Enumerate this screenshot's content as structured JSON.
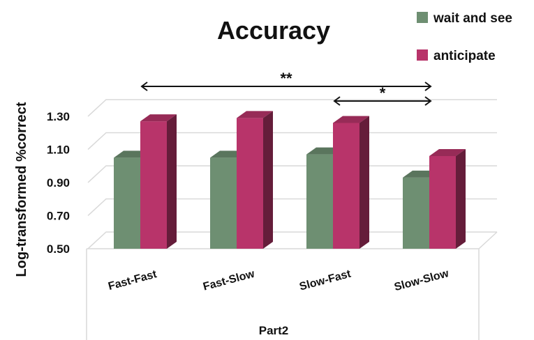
{
  "chart_data": {
    "type": "bar",
    "title": "Accuracy",
    "ylabel": "Log-transformed %correct",
    "xlabel": "Part2",
    "ylim": [
      0.5,
      1.3
    ],
    "yticks": [
      "0.50",
      "0.70",
      "0.90",
      "1.10",
      "1.30"
    ],
    "categories": [
      "Fast-Fast",
      "Fast-Slow",
      "Slow-Fast",
      "Slow-Slow"
    ],
    "series": [
      {
        "name": "wait and see",
        "color": "#6e8f72",
        "values": [
          1.05,
          1.05,
          1.07,
          0.93
        ]
      },
      {
        "name": "anticipate",
        "color": "#b8346a",
        "values": [
          1.27,
          1.29,
          1.26,
          1.06
        ]
      }
    ],
    "legend_position": "top-right",
    "grid": true,
    "significance": [
      {
        "label": "**",
        "from": "Fast-Fast",
        "to": "Slow-Slow"
      },
      {
        "label": "*",
        "from": "Slow-Fast",
        "to": "Slow-Slow"
      }
    ]
  }
}
